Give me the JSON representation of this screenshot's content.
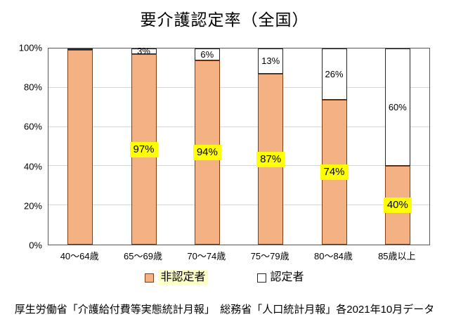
{
  "title": "要介護認定率（全国）",
  "source_note": "厚生労働省「介護給付費等実態統計月報」　総務省「人口統計月報」各2021年10月データ",
  "legend": {
    "non_certified": "非認定者",
    "certified": "認定者"
  },
  "colors": {
    "background": "#FFFFFF",
    "text": "#000000",
    "non_certified_fill": "#F4B183",
    "non_certified_border": "#843C0C",
    "certified_fill": "#FFFFFF",
    "certified_border": "#262626",
    "data_label_highlight": "#FFFF00",
    "legend_label_highlight": "#FFFFC8",
    "gridline": "#D9D9D9",
    "plot_border": "#595959"
  },
  "chart_data": {
    "type": "bar",
    "stacked": true,
    "title": "要介護認定率（全国）",
    "categories": [
      "40〜64歳",
      "65〜69歳",
      "70〜74歳",
      "75〜79歳",
      "80〜84歳",
      "85歳以上"
    ],
    "series": [
      {
        "name": "非認定者",
        "values": [
          100,
          97,
          94,
          87,
          74,
          40
        ],
        "data_labels": [
          "",
          "97%",
          "94%",
          "87%",
          "74%",
          "40%"
        ]
      },
      {
        "name": "認定者",
        "values": [
          0,
          3,
          6,
          13,
          26,
          60
        ],
        "data_labels": [
          "",
          "3%",
          "6%",
          "13%",
          "26%",
          "60%"
        ]
      }
    ],
    "y_axis": {
      "ticks": [
        "0%",
        "20%",
        "40%",
        "60%",
        "80%",
        "100%"
      ],
      "min": 0,
      "max": 100,
      "tick_step": 20
    },
    "grid": true,
    "legend_position": "bottom"
  }
}
